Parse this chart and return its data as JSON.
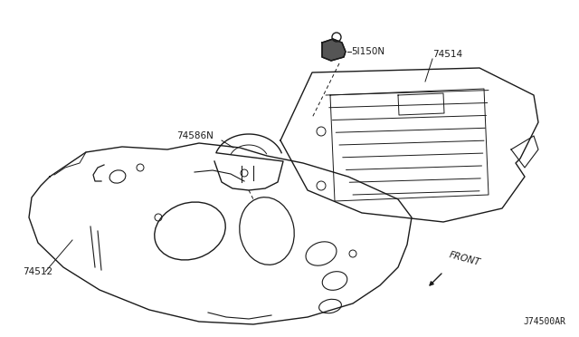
{
  "bg_color": "#ffffff",
  "line_color": "#1a1a1a",
  "diagram_code": "J74500AR",
  "lw": 1.0,
  "label_51150N": "5I150N",
  "label_74514": "74514",
  "label_74586N": "74586N",
  "label_74512": "74512",
  "label_front": "FRONT"
}
